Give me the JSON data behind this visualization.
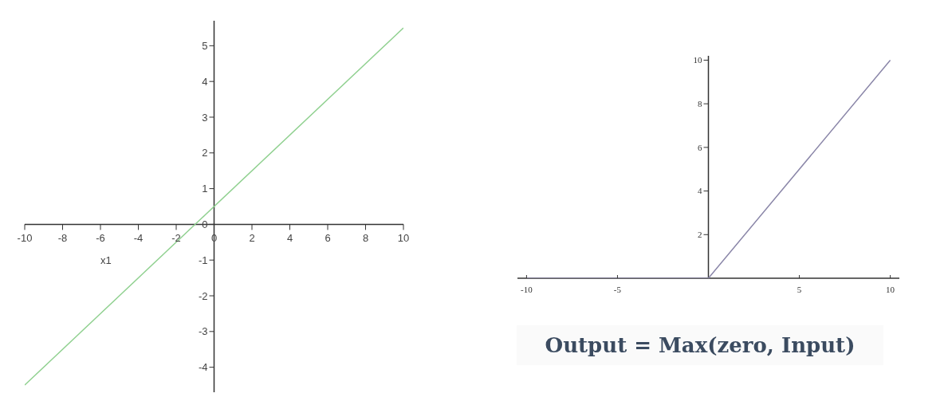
{
  "chart_data": [
    {
      "type": "line",
      "xlabel": "x1",
      "xlim": [
        -10,
        10
      ],
      "ylim": [
        -4.7,
        5.7
      ],
      "xticks": [
        -10,
        -8,
        -6,
        -4,
        -2,
        0,
        2,
        4,
        6,
        8,
        10
      ],
      "yticks": [
        -4,
        -3,
        -2,
        -1,
        0,
        1,
        2,
        3,
        4,
        5
      ],
      "marker": "none",
      "legend": false,
      "series": [
        {
          "color": "#8fd08f",
          "x": [
            -10,
            10
          ],
          "values": [
            -4.5,
            5.5
          ]
        }
      ]
    },
    {
      "type": "line",
      "xlim": [
        -10.5,
        10.5
      ],
      "ylim": [
        0,
        10.2
      ],
      "xticks": [
        -10,
        -5,
        5,
        10
      ],
      "yticks": [
        2,
        4,
        6,
        8,
        10
      ],
      "marker": "none",
      "legend": false,
      "annotations": [
        "Output = Max(zero, Input)"
      ],
      "series": [
        {
          "color": "#8a86a8",
          "x": [
            -10,
            0,
            10
          ],
          "values": [
            0,
            0,
            10
          ]
        }
      ]
    }
  ]
}
